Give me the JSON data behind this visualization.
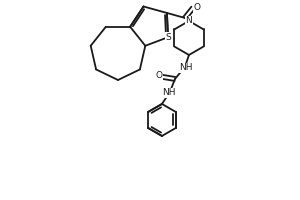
{
  "bg_color": "#ffffff",
  "line_color": "#1a1a1a",
  "line_width": 1.3,
  "figsize": [
    3.0,
    2.0
  ],
  "dpi": 100,
  "atoms": {
    "S_label": "S",
    "O1_label": "O",
    "N1_label": "N",
    "NH1_label": "NH",
    "O2_label": "O",
    "NH2_label": "NH"
  }
}
